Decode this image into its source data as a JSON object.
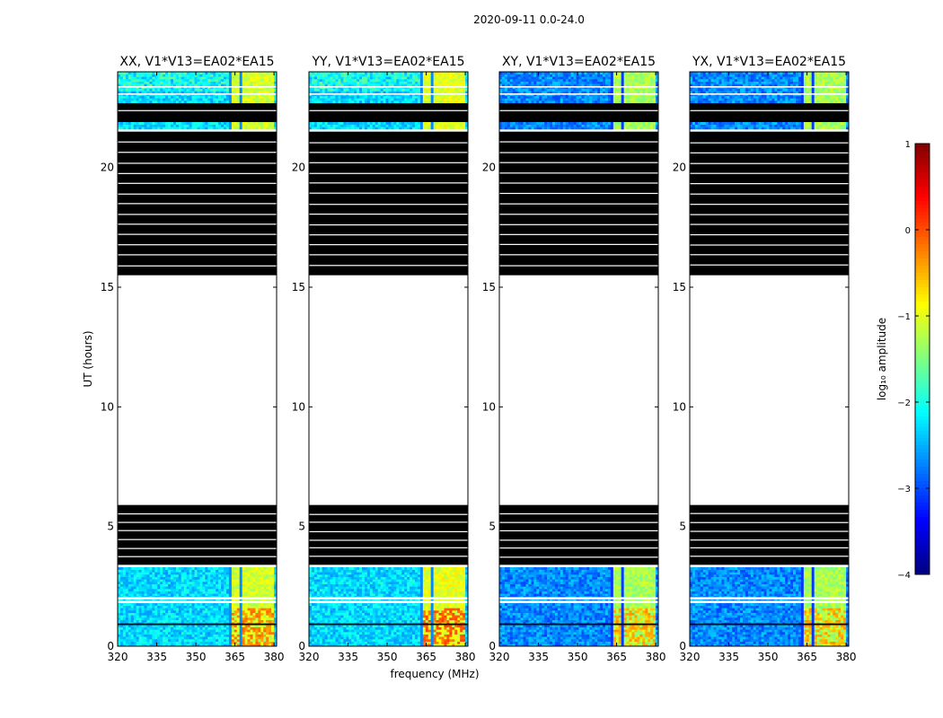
{
  "chart_data": {
    "type": "heatmap",
    "suptitle": "2020-09-11 0.0-24.0",
    "xlabel": "frequency (MHz)",
    "ylabel": "UT (hours)",
    "xlim": [
      320,
      381
    ],
    "ylim": [
      0,
      24
    ],
    "x_ticks": [
      320,
      335,
      350,
      365,
      380
    ],
    "y_ticks": [
      0,
      5,
      10,
      15,
      20
    ],
    "panels": [
      {
        "title": "XX, V1*V13=EA02*EA15",
        "pol": "XX",
        "low_band_value": -2.3,
        "high_band_value": -1.1,
        "peak_value": -0.3
      },
      {
        "title": "YY, V1*V13=EA02*EA15",
        "pol": "YY",
        "low_band_value": -2.3,
        "high_band_value": -1.0,
        "peak_value": -0.1
      },
      {
        "title": "XY, V1*V13=EA02*EA15",
        "pol": "XY",
        "low_band_value": -2.7,
        "high_band_value": -1.3,
        "peak_value": -0.5
      },
      {
        "title": "YX, V1*V13=EA02*EA15",
        "pol": "YX",
        "low_band_value": -2.7,
        "high_band_value": -1.3,
        "peak_value": -0.5
      }
    ],
    "bright_band_mhz": [
      363,
      380
    ],
    "data_time_ranges_hours": [
      [
        0,
        3.3
      ],
      [
        21.6,
        21.9
      ],
      [
        22.7,
        24
      ]
    ],
    "flagged_time_ranges_hours": [
      [
        3.4,
        5.9
      ],
      [
        15.5,
        21.5
      ]
    ],
    "empty_time_range_hours": [
      5.9,
      15.4
    ],
    "colorbar": {
      "label": "log₁₀ amplitude",
      "range": [
        -4,
        1
      ],
      "ticks": [
        "1",
        "0",
        "−1",
        "−2",
        "−3",
        "−4"
      ],
      "colormap": "jet"
    }
  }
}
